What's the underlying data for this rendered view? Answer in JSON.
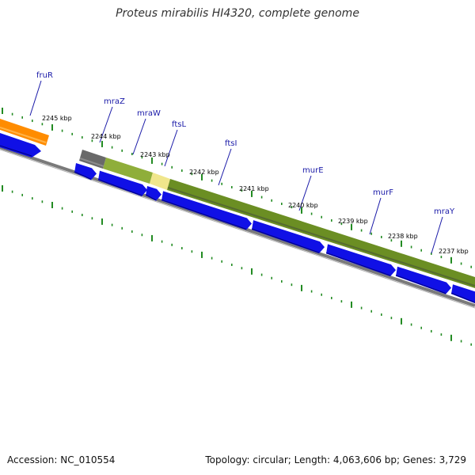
{
  "title": "Proteus mirabilis HI4320, complete genome",
  "footer": {
    "accession": "Accession: NC_010554",
    "summary": "Topology: circular; Length: 4,063,606 bp; Genes: 3,729"
  },
  "kbp_labels": [
    "2245 kbp",
    "2244 kbp",
    "2243 kbp",
    "2242 kbp",
    "2241 kbp",
    "2240 kbp",
    "2239 kbp",
    "2238 kbp",
    "2237 kbp"
  ],
  "gene_labels": [
    "fruR",
    "mraZ",
    "mraW",
    "ftsL",
    "ftsI",
    "murE",
    "murF",
    "mraY"
  ],
  "colors": {
    "cds": "#1010e6",
    "operon": "#6b8e23",
    "operon_light": "#9aaf5a",
    "highlight": "#f0e68c",
    "fruR_feature": "#ff8c00",
    "dark_feature": "#696969",
    "backbone": "#808080",
    "ticks": "#228b22",
    "label": "#1a1aa8"
  }
}
